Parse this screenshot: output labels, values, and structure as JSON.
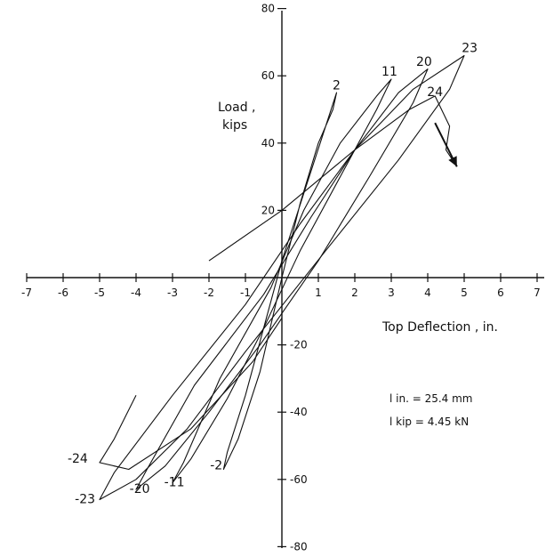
{
  "chart_data": {
    "type": "line",
    "title": "",
    "ylabel_line1": "Load ,",
    "ylabel_line2": "kips",
    "xlabel": "Top Deflection , in.",
    "xlim": [
      -7,
      7
    ],
    "ylim": [
      -80,
      80
    ],
    "x_ticks": [
      -7,
      -6,
      -5,
      -4,
      -3,
      -2,
      -1,
      1,
      2,
      3,
      4,
      5,
      6,
      7
    ],
    "y_ticks": [
      80,
      60,
      40,
      20,
      -20,
      -40,
      -60,
      -80
    ],
    "grid": false,
    "notes": [
      "l in. = 25.4 mm",
      "l kip = 4.45 kN"
    ],
    "cycle_labels": [
      {
        "text": "2",
        "x": 1.5,
        "y": 56
      },
      {
        "text": "11",
        "x": 2.95,
        "y": 60
      },
      {
        "text": "20",
        "x": 3.9,
        "y": 63
      },
      {
        "text": "23",
        "x": 5.15,
        "y": 67
      },
      {
        "text": "24",
        "x": 4.2,
        "y": 54
      },
      {
        "text": "-24",
        "x": -5.6,
        "y": -55
      },
      {
        "text": "-23",
        "x": -5.4,
        "y": -67
      },
      {
        "text": "-20",
        "x": -3.9,
        "y": -64
      },
      {
        "text": "-11",
        "x": -2.95,
        "y": -62
      },
      {
        "text": "-2",
        "x": -1.8,
        "y": -57
      }
    ],
    "series": [
      {
        "x": [
          0,
          0.5,
          1.0,
          1.4,
          1.5,
          1.2,
          0.6,
          0,
          -0.5,
          -1.0,
          -1.5,
          -1.6,
          -1.2,
          -0.6,
          0
        ],
        "y": [
          0,
          22,
          40,
          50,
          55,
          45,
          25,
          5,
          -15,
          -35,
          -52,
          -57,
          -48,
          -28,
          0
        ]
      },
      {
        "x": [
          -0.3,
          0.6,
          1.6,
          2.6,
          3.0,
          2.6,
          1.6,
          0.5,
          -0.5,
          -1.5,
          -2.5,
          -3.0,
          -2.7,
          -1.7,
          -0.3
        ],
        "y": [
          -3,
          20,
          40,
          54,
          59,
          50,
          30,
          8,
          -15,
          -36,
          -54,
          -61,
          -55,
          -30,
          -3
        ]
      },
      {
        "x": [
          -0.5,
          0.8,
          2.0,
          3.2,
          4.0,
          3.6,
          2.4,
          1.0,
          -0.6,
          -2.0,
          -3.2,
          -4.0,
          -3.7,
          -2.4,
          -0.5
        ],
        "y": [
          -5,
          18,
          38,
          55,
          62,
          52,
          30,
          5,
          -20,
          -40,
          -56,
          -63,
          -57,
          -32,
          -5
        ]
      },
      {
        "x": [
          -1.0,
          0.5,
          2.0,
          3.6,
          5.0,
          4.6,
          3.2,
          1.2,
          -1.0,
          -2.6,
          -4.0,
          -5.0,
          -4.6,
          -3.0,
          -1.0
        ],
        "y": [
          -8,
          16,
          38,
          56,
          66,
          56,
          35,
          8,
          -22,
          -45,
          -60,
          -66,
          -58,
          -35,
          -8
        ]
      },
      {
        "x": [
          -2.0,
          0,
          2.0,
          3.5,
          4.2,
          4.6,
          4.5,
          4.8
        ],
        "y": [
          5,
          20,
          38,
          50,
          54,
          45,
          38,
          33
        ]
      },
      {
        "x": [
          -4.0,
          -4.6,
          -5.0,
          -4.2,
          -2.5,
          -0.8,
          0
        ],
        "y": [
          -35,
          -48,
          -55,
          -57,
          -45,
          -25,
          -12
        ]
      }
    ],
    "arrow": {
      "x": [
        4.2,
        4.8
      ],
      "y": [
        46,
        33
      ]
    }
  }
}
